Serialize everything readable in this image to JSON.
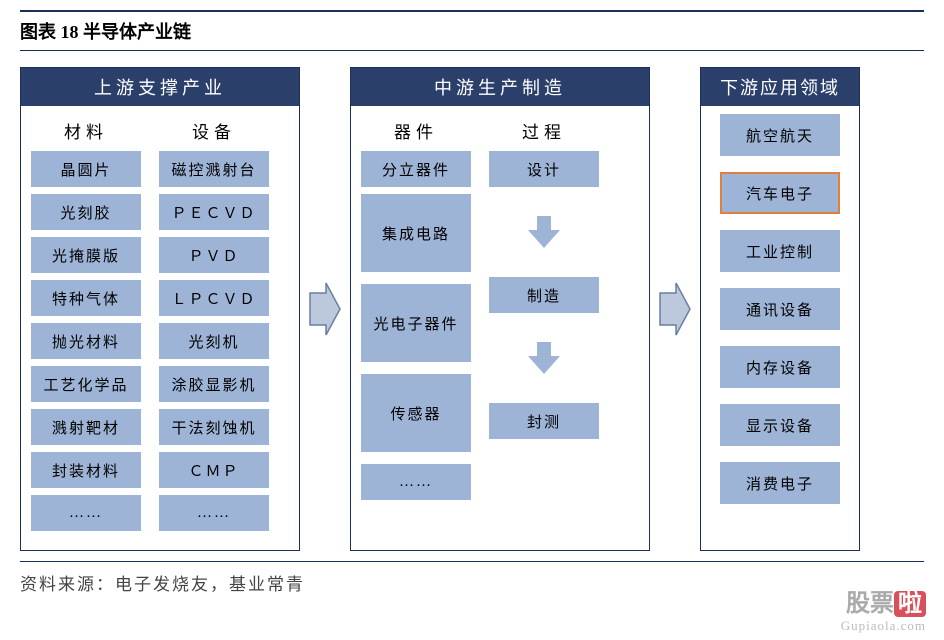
{
  "title": "图表 18  半导体产业链",
  "source": "资料来源：电子发烧友，基业常青",
  "watermark": {
    "main": "股票",
    "la": "啦",
    "sub": "Gupiaola.com"
  },
  "colors": {
    "header_bg": "#2a3f6a",
    "cell_bg": "#9db4d6",
    "border": "#1a2f5a",
    "highlight_border": "#e08040",
    "arrow_fill": "#bcc9dd",
    "arrow_stroke": "#6a7ea3"
  },
  "upstream": {
    "header": "上游支撑产业",
    "col1": {
      "title": "材料",
      "items": [
        "晶圆片",
        "光刻胶",
        "光掩膜版",
        "特种气体",
        "抛光材料",
        "工艺化学品",
        "溅射靶材",
        "封装材料",
        "……"
      ]
    },
    "col2": {
      "title": "设备",
      "items": [
        "磁控溅射台",
        "ＰＥＣＶＤ",
        "ＰＶＤ",
        "ＬＰＣＶＤ",
        "光刻机",
        "涂胶显影机",
        "干法刻蚀机",
        "ＣＭＰ",
        "……"
      ]
    }
  },
  "midstream": {
    "header": "中游生产制造",
    "col1": {
      "title": "器件",
      "items": [
        "分立器件",
        "集成电路",
        "光电子器件",
        "传感器",
        "……"
      ]
    },
    "col2": {
      "title": "过程",
      "items": [
        "设计",
        "制造",
        "封测"
      ]
    }
  },
  "downstream": {
    "header": "下游应用领域",
    "items": [
      {
        "label": "航空航天",
        "hl": false
      },
      {
        "label": "汽车电子",
        "hl": true
      },
      {
        "label": "工业控制",
        "hl": false
      },
      {
        "label": "通讯设备",
        "hl": false
      },
      {
        "label": "内存设备",
        "hl": false
      },
      {
        "label": "显示设备",
        "hl": false
      },
      {
        "label": "消费电子",
        "hl": false
      }
    ]
  }
}
